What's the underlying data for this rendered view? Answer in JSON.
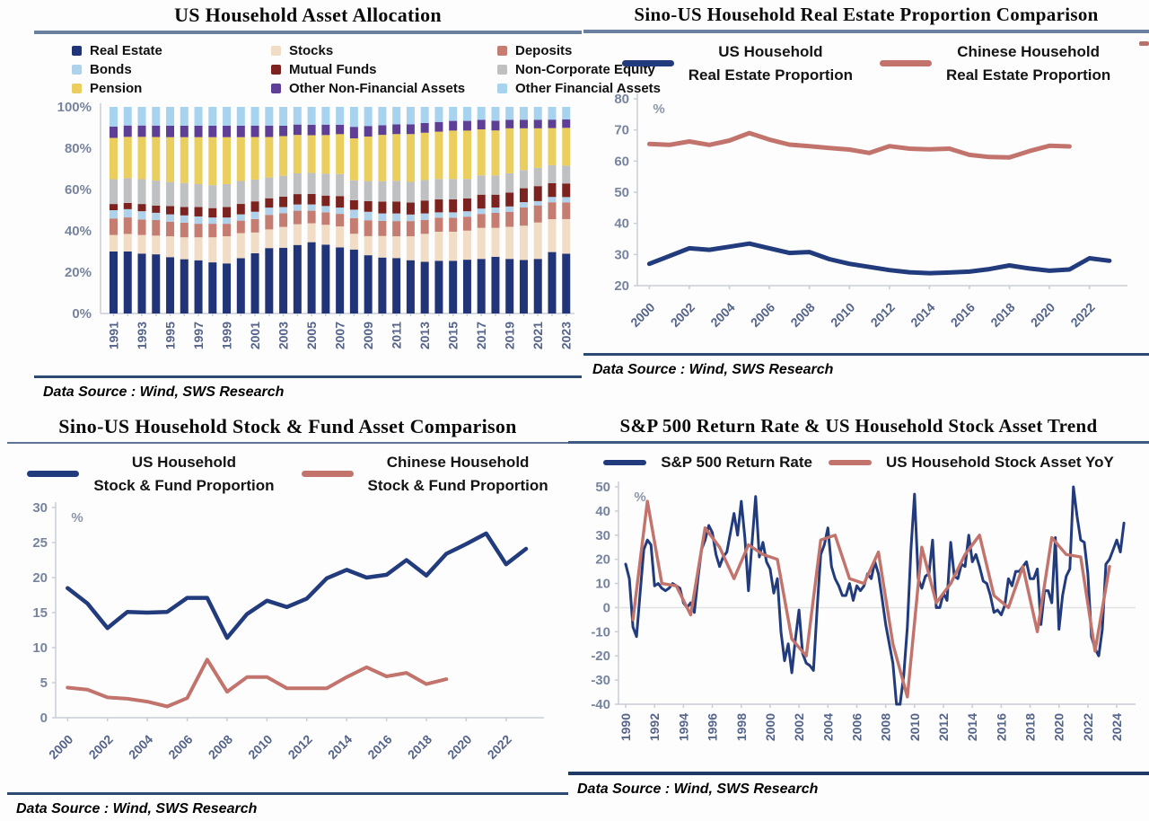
{
  "colors": {
    "navy_line": "#213b7c",
    "salmon_line": "#c2736c",
    "tick_label": "#55648a",
    "rule_top": "#69809f",
    "rule_bottom": "#2d4a72"
  },
  "panels": [
    {
      "title": "US Household Asset Allocation",
      "source": "Data Source :  Wind,  SWS Research",
      "legend": [
        {
          "label": "Real Estate",
          "color": "#213478"
        },
        {
          "label": "Stocks",
          "color": "#f1ddc6"
        },
        {
          "label": "Deposits",
          "color": "#c57d72"
        },
        {
          "label": "Bonds",
          "color": "#afd2ea"
        },
        {
          "label": "Mutual Funds",
          "color": "#7d231f"
        },
        {
          "label": "Non-Corporate Equity",
          "color": "#bfc0c2"
        },
        {
          "label": "Pension",
          "color": "#eace5e"
        },
        {
          "label": "Other Non-Financial Assets",
          "color": "#5e3f96"
        },
        {
          "label": "Other Financial Assets",
          "color": "#a7d3ee"
        }
      ]
    },
    {
      "title": "Sino-US Household Real Estate Proportion Comparison",
      "source": "Data Source :  Wind,  SWS Research",
      "legend": [
        {
          "line1": "US Household",
          "line2": "Real Estate Proportion",
          "color": "#213b7c"
        },
        {
          "line1": "Chinese Household",
          "line2": "Real Estate Proportion",
          "color": "#c2736c"
        }
      ]
    },
    {
      "title": "Sino-US Household Stock & Fund Asset Comparison",
      "source": "Data Source :  Wind,  SWS Research",
      "legend": [
        {
          "line1": "US Household",
          "line2": "Stock & Fund Proportion",
          "color": "#213b7c"
        },
        {
          "line1": "Chinese Household",
          "line2": "Stock & Fund Proportion",
          "color": "#c2736c"
        }
      ]
    },
    {
      "title": "S&P 500 Return Rate & US Household Stock Asset Trend",
      "source": "Data Source :  Wind,  SWS Research",
      "legend": [
        {
          "label": "S&P 500 Return Rate",
          "color": "#213b7c"
        },
        {
          "label": "US Household Stock Asset YoY",
          "color": "#c2736c"
        }
      ]
    }
  ],
  "chart_data": [
    {
      "type": "bar",
      "stacked": true,
      "title": "US Household Asset Allocation",
      "xlabel": "",
      "ylabel": "%",
      "ylim": [
        0,
        100
      ],
      "ytick_labels": [
        "100%",
        "80%",
        "60%",
        "40%",
        "20%",
        "0%"
      ],
      "categories": [
        1991,
        1992,
        1993,
        1994,
        1995,
        1996,
        1997,
        1998,
        1999,
        2000,
        2001,
        2002,
        2003,
        2004,
        2005,
        2006,
        2007,
        2008,
        2009,
        2010,
        2011,
        2012,
        2013,
        2014,
        2015,
        2016,
        2017,
        2018,
        2019,
        2020,
        2021,
        2022,
        2023
      ],
      "label_every": 2,
      "series": [
        {
          "name": "Real Estate",
          "color": "#213478",
          "values": [
            30,
            30,
            29,
            28.5,
            27,
            26,
            25.5,
            24.5,
            24,
            26.5,
            29,
            31.5,
            31.5,
            33,
            34,
            33,
            31.5,
            30.5,
            27.5,
            26,
            25.5,
            24.5,
            24,
            24.5,
            24.5,
            25,
            25.5,
            26.5,
            25.5,
            25,
            25.5,
            29,
            28.5
          ]
        },
        {
          "name": "Stocks",
          "color": "#f1ddc6",
          "values": [
            8,
            8.5,
            9,
            9,
            10,
            10.5,
            11,
            12,
            13,
            12,
            10,
            9,
            10,
            10,
            9,
            9.5,
            10,
            7.5,
            9,
            10,
            10,
            11,
            13,
            13.5,
            13.5,
            13.5,
            14.5,
            13.5,
            15,
            16,
            17,
            15.5,
            16.5
          ]
        },
        {
          "name": "Deposits",
          "color": "#c57d72",
          "values": [
            8,
            8,
            7.5,
            7.5,
            7,
            7,
            6.5,
            6.5,
            6,
            6,
            6.5,
            7,
            6.5,
            6.5,
            6,
            6,
            6,
            7.5,
            7.5,
            7,
            7,
            7,
            6.5,
            6.5,
            6.5,
            6.5,
            6.5,
            7,
            7,
            8.5,
            8,
            8,
            8
          ]
        },
        {
          "name": "Bonds",
          "color": "#afd2ea",
          "values": [
            4,
            4,
            4,
            3.5,
            3.5,
            3.5,
            3.5,
            3,
            3,
            3,
            3.5,
            3.5,
            3,
            3,
            3,
            3,
            3,
            4,
            4,
            3.5,
            3.5,
            3,
            3,
            2.5,
            2.5,
            2.5,
            2.5,
            2.5,
            2.5,
            2.5,
            2,
            2.5,
            2.5
          ]
        },
        {
          "name": "Mutual Funds",
          "color": "#7d231f",
          "values": [
            3,
            3,
            3.5,
            3.5,
            4,
            4,
            4.5,
            4.5,
            5,
            5,
            5,
            4.5,
            5,
            5,
            5,
            5,
            5.5,
            4.5,
            5,
            5.5,
            5.5,
            5.5,
            6,
            6,
            6,
            6,
            6.5,
            6,
            6.5,
            6.5,
            7,
            6.5,
            6.5
          ]
        },
        {
          "name": "Non-Corporate Equity",
          "color": "#bfc0c2",
          "values": [
            12,
            12,
            12,
            12,
            11.5,
            11.5,
            11,
            11,
            11,
            11,
            10.5,
            10,
            10,
            10,
            10,
            10.5,
            10.5,
            9.5,
            9.5,
            9.5,
            9.5,
            9.5,
            9.5,
            9.5,
            9.5,
            9,
            9,
            9,
            9,
            8.5,
            8.5,
            8.5,
            8.5
          ]
        },
        {
          "name": "Pension",
          "color": "#eace5e",
          "values": [
            20,
            20,
            20.5,
            21,
            21.5,
            22,
            22.5,
            23,
            22.5,
            21,
            20.5,
            19.5,
            19,
            18.5,
            18,
            18.5,
            19,
            20,
            21,
            21.5,
            21.5,
            22,
            22,
            22,
            22.5,
            22.5,
            21.5,
            21,
            21,
            19.5,
            18.5,
            17.5,
            18
          ]
        },
        {
          "name": "Other Non-Financial Assets",
          "color": "#5e3f96",
          "values": [
            5.5,
            5.5,
            5.5,
            5.5,
            5.5,
            5.5,
            5.5,
            5.5,
            5.5,
            5.5,
            5.5,
            5.5,
            5,
            5,
            5,
            5,
            4.5,
            5.5,
            5,
            4.5,
            4.5,
            4.5,
            4.5,
            4.5,
            4.5,
            4.5,
            4.5,
            4.5,
            4,
            4,
            4,
            4,
            4
          ]
        },
        {
          "name": "Other Financial Assets",
          "color": "#a7d3ee",
          "values": [
            9.5,
            9,
            9,
            9,
            9,
            9,
            9,
            9,
            9,
            9,
            9,
            9,
            9,
            8.5,
            8.5,
            8.5,
            8.5,
            9.5,
            9,
            8.5,
            8,
            8,
            7.5,
            7,
            6.5,
            6.5,
            6,
            6.5,
            6,
            6,
            6,
            6,
            6
          ]
        }
      ]
    },
    {
      "type": "line",
      "title": "Sino-US Household Real Estate Proportion Comparison",
      "xlabel": "",
      "ylabel": "%",
      "unit": "%",
      "ylim": [
        20,
        80
      ],
      "yticks": [
        20,
        30,
        40,
        50,
        60,
        70,
        80
      ],
      "xticks": [
        2000,
        2002,
        2004,
        2006,
        2008,
        2010,
        2012,
        2014,
        2016,
        2018,
        2020,
        2022
      ],
      "xdomain": [
        1999.4,
        2023.9
      ],
      "xlabel_rot": "diag",
      "series": [
        {
          "name": "US Household Real Estate Proportion",
          "color": "#213b7c",
          "width": 5,
          "x_start": 2000,
          "x_step": 1,
          "values": [
            27,
            29.5,
            32,
            31.5,
            32.5,
            33.5,
            32,
            30.5,
            30.8,
            28.5,
            27,
            26,
            25,
            24.3,
            24,
            24.2,
            24.5,
            25.3,
            26.5,
            25.5,
            24.8,
            25.2,
            28.8,
            28
          ]
        },
        {
          "name": "Chinese Household Real Estate Proportion",
          "color": "#c2736c",
          "width": 5,
          "x_start": 2000,
          "x_step": 1,
          "values": [
            65.5,
            65.2,
            66.3,
            65.2,
            66.6,
            69,
            66.9,
            65.3,
            64.8,
            64.2,
            63.7,
            62.6,
            64.8,
            64,
            63.8,
            64,
            62,
            61.3,
            61.2,
            63.2,
            64.9,
            64.7
          ]
        }
      ]
    },
    {
      "type": "line",
      "title": "Sino-US Household Stock & Fund Asset Comparison",
      "xlabel": "",
      "ylabel": "%",
      "unit": "%",
      "ylim": [
        0,
        30
      ],
      "yticks": [
        0,
        5,
        10,
        15,
        20,
        25,
        30
      ],
      "xticks": [
        2000,
        2002,
        2004,
        2006,
        2008,
        2010,
        2012,
        2014,
        2016,
        2018,
        2020,
        2022
      ],
      "xdomain": [
        1999.4,
        2023.9
      ],
      "xlabel_rot": "diag",
      "series": [
        {
          "name": "US Household Stock & Fund Proportion",
          "color": "#213b7c",
          "width": 4.5,
          "x_start": 2000,
          "x_step": 1,
          "values": [
            18.5,
            16.3,
            12.8,
            15.1,
            15,
            15.1,
            17.1,
            17.1,
            11.4,
            14.8,
            16.7,
            15.8,
            17,
            19.9,
            21.1,
            20,
            20.4,
            22.5,
            20.3,
            23.4,
            24.8,
            26.3,
            21.9,
            24.1
          ]
        },
        {
          "name": "Chinese Household Stock & Fund Proportion",
          "color": "#c2736c",
          "width": 4,
          "x_start": 2000,
          "x_step": 1,
          "values": [
            4.3,
            4,
            2.9,
            2.7,
            2.3,
            1.6,
            2.8,
            8.3,
            3.7,
            5.8,
            5.8,
            4.2,
            4.2,
            4.2,
            5.8,
            7.2,
            5.9,
            6.4,
            4.8,
            5.5
          ]
        }
      ]
    },
    {
      "type": "line",
      "title": "S&P 500 Return Rate & US Household Stock Asset Trend",
      "xlabel": "",
      "ylabel": "%",
      "unit": "%",
      "ylim": [
        -40,
        50
      ],
      "yticks": [
        50,
        40,
        30,
        20,
        10,
        0,
        -10,
        -20,
        -30,
        -40
      ],
      "zero_line": true,
      "xticks": [
        1990,
        1992,
        1994,
        1996,
        1998,
        2000,
        2002,
        2004,
        2006,
        2008,
        2010,
        2012,
        2014,
        2016,
        2018,
        2020,
        2022,
        2024
      ],
      "xdomain": [
        1989.5,
        2025.3
      ],
      "xlabel_rot": "vert",
      "series": [
        {
          "name": "S&P 500 Return Rate",
          "color": "#213b7c",
          "width": 3,
          "x_start": 1990,
          "x_step": 0.25,
          "values": [
            18,
            12,
            -8,
            -12,
            6,
            24,
            28,
            26,
            9,
            10,
            8,
            7,
            8,
            10,
            9,
            8,
            2,
            0,
            2,
            -2,
            12,
            24,
            28,
            34,
            31,
            22,
            17,
            21,
            23,
            31,
            39,
            30,
            44,
            29,
            7,
            27,
            46,
            21,
            27,
            19,
            16,
            6,
            12,
            -10,
            -22,
            -15,
            -27,
            -13,
            -1,
            -19,
            -23,
            -24,
            -26,
            -1,
            22,
            26,
            33,
            17,
            12,
            9,
            5,
            5,
            10,
            3,
            9,
            7,
            9,
            14,
            12,
            19,
            14,
            4,
            -7,
            -15,
            -23,
            -40,
            -40,
            -28,
            -8,
            24,
            47,
            12,
            8,
            13,
            14,
            28,
            0,
            0,
            6,
            3,
            27,
            13,
            12,
            18,
            17,
            30,
            19,
            22,
            17,
            11,
            10,
            5,
            -2,
            -1,
            -3,
            1,
            12,
            9,
            15,
            15,
            17,
            19,
            12,
            12,
            16,
            -7,
            7,
            7,
            2,
            29,
            -9,
            5,
            13,
            16,
            50,
            38,
            28,
            27,
            14,
            -12,
            -17,
            -20,
            -9,
            18,
            20,
            24,
            28,
            23,
            35
          ]
        },
        {
          "name": "US Household Stock Asset YoY",
          "color": "#c2736c",
          "width": 3.4,
          "x_start": 1990.5,
          "x_step": 1,
          "values": [
            -5,
            44,
            10,
            9,
            -3,
            33,
            25,
            12,
            26,
            22,
            20,
            -13,
            -20,
            28,
            30,
            12,
            10,
            23,
            -15,
            -37,
            25,
            2,
            10,
            22,
            30,
            5,
            0,
            17,
            -10,
            29,
            22,
            21,
            -18,
            17
          ]
        }
      ]
    }
  ]
}
